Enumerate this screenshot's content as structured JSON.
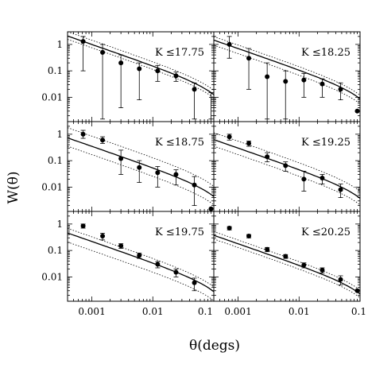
{
  "chart_data": {
    "type": "scatter",
    "xlabel": "θ(degs)",
    "ylabel": "W(θ)",
    "xscale": "log",
    "yscale": "log",
    "xlim": [
      0.0004,
      0.1
    ],
    "ylim": [
      0.0012,
      3.0
    ],
    "x_ticks": [
      0.001,
      0.01,
      0.1
    ],
    "x_tick_labels": [
      "0.001",
      "0.01",
      "0.1"
    ],
    "y_ticks": [
      1,
      0.1,
      0.01
    ],
    "y_tick_labels": [
      "1",
      "0.1",
      "0.01"
    ],
    "layout": "3 rows x 2 columns, shared axes",
    "panels": [
      {
        "label": "K ≤17.75",
        "points": [
          {
            "x": 0.00072,
            "y": 1.3,
            "ylo": 0.1,
            "yhi": 2.0
          },
          {
            "x": 0.0015,
            "y": 0.5,
            "ylo": 0.0015,
            "yhi": 1.0
          },
          {
            "x": 0.003,
            "y": 0.2,
            "ylo": 0.004,
            "yhi": 0.4
          },
          {
            "x": 0.006,
            "y": 0.12,
            "ylo": 0.008,
            "yhi": 0.2
          },
          {
            "x": 0.012,
            "y": 0.1,
            "ylo": 0.04,
            "yhi": 0.16
          },
          {
            "x": 0.024,
            "y": 0.065,
            "ylo": 0.04,
            "yhi": 0.09
          },
          {
            "x": 0.048,
            "y": 0.02,
            "ylo": 0.0015,
            "yhi": 0.035
          },
          {
            "x": 0.09,
            "y": null,
            "ylo": 0.0015,
            "yhi": 0.015
          }
        ]
      },
      {
        "label": "K ≤18.25",
        "points": [
          {
            "x": 0.00072,
            "y": 1.0,
            "ylo": 0.3,
            "yhi": 2.0
          },
          {
            "x": 0.0015,
            "y": 0.3,
            "ylo": 0.02,
            "yhi": 0.7
          },
          {
            "x": 0.003,
            "y": 0.06,
            "ylo": 0.0015,
            "yhi": 0.2
          },
          {
            "x": 0.006,
            "y": 0.04,
            "ylo": 0.0015,
            "yhi": 0.1
          },
          {
            "x": 0.012,
            "y": 0.045,
            "ylo": 0.01,
            "yhi": 0.08
          },
          {
            "x": 0.024,
            "y": 0.032,
            "ylo": 0.01,
            "yhi": 0.05
          },
          {
            "x": 0.048,
            "y": 0.02,
            "ylo": 0.008,
            "yhi": 0.035
          },
          {
            "x": 0.09,
            "y": 0.003,
            "ylo": null,
            "yhi": null
          }
        ]
      },
      {
        "label": "K ≤18.75",
        "points": [
          {
            "x": 0.00072,
            "y": 1.0,
            "ylo": 0.7,
            "yhi": 1.4
          },
          {
            "x": 0.0015,
            "y": 0.6,
            "ylo": 0.45,
            "yhi": 0.8
          },
          {
            "x": 0.003,
            "y": 0.12,
            "ylo": 0.03,
            "yhi": 0.25
          },
          {
            "x": 0.006,
            "y": 0.055,
            "ylo": 0.015,
            "yhi": 0.1
          },
          {
            "x": 0.012,
            "y": 0.035,
            "ylo": 0.01,
            "yhi": 0.06
          },
          {
            "x": 0.024,
            "y": 0.03,
            "ylo": 0.012,
            "yhi": 0.045
          },
          {
            "x": 0.048,
            "y": 0.012,
            "ylo": 0.002,
            "yhi": 0.025
          },
          {
            "x": 0.09,
            "y": 0.0015,
            "ylo": null,
            "yhi": null
          }
        ]
      },
      {
        "label": "K ≤19.25",
        "points": [
          {
            "x": 0.00072,
            "y": 0.8,
            "ylo": 0.6,
            "yhi": 1.0
          },
          {
            "x": 0.0015,
            "y": 0.45,
            "ylo": 0.35,
            "yhi": 0.55
          },
          {
            "x": 0.003,
            "y": 0.14,
            "ylo": 0.09,
            "yhi": 0.2
          },
          {
            "x": 0.006,
            "y": 0.065,
            "ylo": 0.04,
            "yhi": 0.09
          },
          {
            "x": 0.012,
            "y": 0.02,
            "ylo": 0.007,
            "yhi": 0.04
          },
          {
            "x": 0.024,
            "y": 0.022,
            "ylo": 0.013,
            "yhi": 0.03
          },
          {
            "x": 0.048,
            "y": 0.008,
            "ylo": 0.004,
            "yhi": 0.013
          },
          {
            "x": 0.09,
            "y": null,
            "ylo": null,
            "yhi": null
          }
        ]
      },
      {
        "label": "K ≤19.75",
        "points": [
          {
            "x": 0.00072,
            "y": 0.85,
            "ylo": 0.7,
            "yhi": 1.0
          },
          {
            "x": 0.0015,
            "y": 0.35,
            "ylo": 0.25,
            "yhi": 0.45
          },
          {
            "x": 0.003,
            "y": 0.15,
            "ylo": 0.12,
            "yhi": 0.18
          },
          {
            "x": 0.006,
            "y": 0.065,
            "ylo": 0.05,
            "yhi": 0.08
          },
          {
            "x": 0.012,
            "y": 0.03,
            "ylo": 0.022,
            "yhi": 0.038
          },
          {
            "x": 0.024,
            "y": 0.015,
            "ylo": 0.01,
            "yhi": 0.02
          },
          {
            "x": 0.048,
            "y": 0.006,
            "ylo": 0.003,
            "yhi": 0.009
          },
          {
            "x": 0.09,
            "y": null,
            "ylo": null,
            "yhi": null
          }
        ]
      },
      {
        "label": "K ≤20.25",
        "points": [
          {
            "x": 0.00072,
            "y": 0.7,
            "ylo": 0.6,
            "yhi": 0.8
          },
          {
            "x": 0.0015,
            "y": 0.35,
            "ylo": 0.3,
            "yhi": 0.4
          },
          {
            "x": 0.003,
            "y": 0.11,
            "ylo": 0.09,
            "yhi": 0.13
          },
          {
            "x": 0.006,
            "y": 0.06,
            "ylo": 0.05,
            "yhi": 0.07
          },
          {
            "x": 0.012,
            "y": 0.028,
            "ylo": 0.022,
            "yhi": 0.034
          },
          {
            "x": 0.024,
            "y": 0.018,
            "ylo": 0.014,
            "yhi": 0.022
          },
          {
            "x": 0.048,
            "y": 0.008,
            "ylo": 0.005,
            "yhi": 0.011
          },
          {
            "x": 0.09,
            "y": 0.003,
            "ylo": null,
            "yhi": null
          }
        ]
      }
    ],
    "models": [
      {
        "style": "solid",
        "amplitudes": [
          1.0,
          0.7,
          0.35,
          0.3,
          0.22,
          0.18
        ]
      },
      {
        "style": "dotted-upper",
        "amplitudes": [
          1.45,
          0.95,
          0.85,
          0.55,
          0.33,
          0.25
        ]
      },
      {
        "style": "dotted-lower",
        "amplitudes": [
          0.75,
          0.45,
          0.17,
          0.17,
          0.1,
          0.13
        ]
      }
    ],
    "model_shape": {
      "slope": -0.8,
      "x_ref": 0.001,
      "cutoff_x": 0.2
    }
  }
}
